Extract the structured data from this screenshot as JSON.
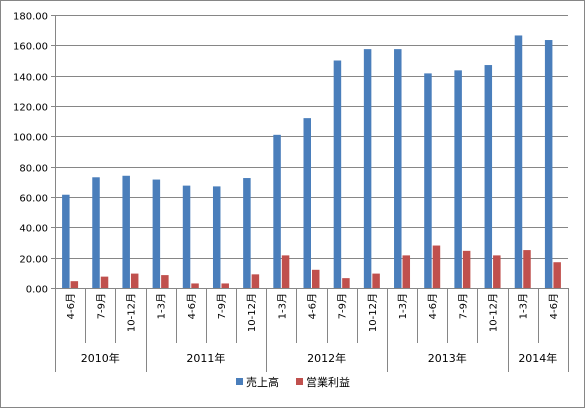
{
  "chart_data": {
    "type": "bar",
    "ylim": [
      0,
      180
    ],
    "yticks": [
      "0.00",
      "20.00",
      "40.00",
      "60.00",
      "80.00",
      "100.00",
      "120.00",
      "140.00",
      "160.00",
      "180.00"
    ],
    "categories": [
      "4-6月",
      "7-9月",
      "10-12月",
      "1-3月",
      "4-6月",
      "7-9月",
      "10-12月",
      "1-3月",
      "4-6月",
      "7-9月",
      "10-12月",
      "1-3月",
      "4-6月",
      "7-9月",
      "10-12月",
      "1-3月",
      "4-6月"
    ],
    "years": [
      {
        "label": "2010年",
        "start": 0,
        "count": 3
      },
      {
        "label": "2011年",
        "start": 3,
        "count": 4
      },
      {
        "label": "2012年",
        "start": 7,
        "count": 4
      },
      {
        "label": "2013年",
        "start": 11,
        "count": 4
      },
      {
        "label": "2014年",
        "start": 15,
        "count": 2
      }
    ],
    "series": [
      {
        "name": "売上高",
        "color": "#4a7ebb",
        "values": [
          61.5,
          73,
          74,
          71.5,
          67.5,
          67,
          72.5,
          101,
          112,
          150,
          157.5,
          157.5,
          141.5,
          143.5,
          147,
          166.5,
          163.5
        ]
      },
      {
        "name": "営業利益",
        "color": "#c0504d",
        "values": [
          4.5,
          7.5,
          9.5,
          8.5,
          3,
          3,
          9,
          21.5,
          12,
          6.5,
          9.5,
          21.5,
          28,
          24.5,
          21.5,
          25,
          17
        ]
      }
    ],
    "legend": "bottom",
    "grid": true
  }
}
